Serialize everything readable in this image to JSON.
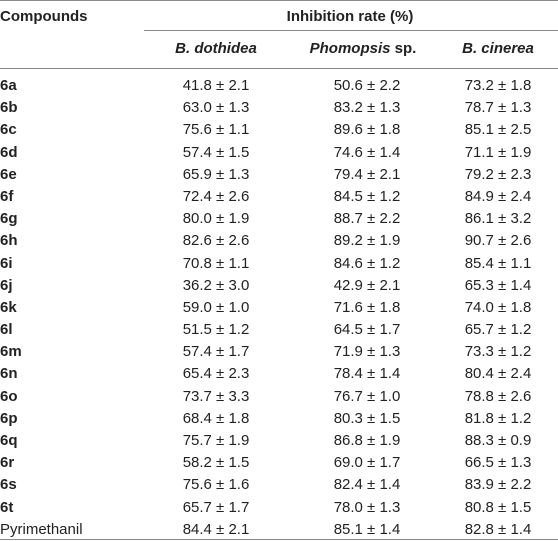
{
  "header": {
    "compounds": "Compounds",
    "inhibition": "Inhibition rate (%)",
    "species": [
      {
        "italic": "B. dothidea",
        "rest": ""
      },
      {
        "italic": "Phomopsis",
        "rest": " sp."
      },
      {
        "italic": "B. cinerea",
        "rest": ""
      }
    ]
  },
  "rows": [
    {
      "name": "6a",
      "v": [
        "41.8 ± 2.1",
        "50.6 ± 2.2",
        "73.2 ± 1.8"
      ]
    },
    {
      "name": "6b",
      "v": [
        "63.0 ± 1.3",
        "83.2 ± 1.3",
        "78.7 ± 1.3"
      ]
    },
    {
      "name": "6c",
      "v": [
        "75.6 ± 1.1",
        "89.6 ± 1.8",
        "85.1 ± 2.5"
      ]
    },
    {
      "name": "6d",
      "v": [
        "57.4 ± 1.5",
        "74.6 ± 1.4",
        "71.1 ± 1.9"
      ]
    },
    {
      "name": "6e",
      "v": [
        "65.9 ± 1.3",
        "79.4 ± 2.1",
        "79.2 ± 2.3"
      ]
    },
    {
      "name": "6f",
      "v": [
        "72.4 ± 2.6",
        "84.5 ± 1.2",
        "84.9 ± 2.4"
      ]
    },
    {
      "name": "6g",
      "v": [
        "80.0 ± 1.9",
        "88.7 ± 2.2",
        "86.1 ± 3.2"
      ]
    },
    {
      "name": "6h",
      "v": [
        "82.6 ± 2.6",
        "89.2 ± 1.9",
        "90.7 ± 2.6"
      ]
    },
    {
      "name": "6i",
      "v": [
        "70.8 ± 1.1",
        "84.6 ± 1.2",
        "85.4 ± 1.1"
      ]
    },
    {
      "name": "6j",
      "v": [
        "36.2 ± 3.0",
        "42.9 ± 2.1",
        "65.3 ± 1.4"
      ]
    },
    {
      "name": "6k",
      "v": [
        "59.0 ± 1.0",
        "71.6 ± 1.8",
        "74.0 ± 1.8"
      ]
    },
    {
      "name": "6l",
      "v": [
        "51.5 ± 1.2",
        "64.5 ± 1.7",
        "65.7 ± 1.2"
      ]
    },
    {
      "name": "6m",
      "v": [
        "57.4 ± 1.7",
        "71.9 ± 1.3",
        "73.3 ± 1.2"
      ]
    },
    {
      "name": "6n",
      "v": [
        "65.4 ± 2.3",
        "78.4 ± 1.4",
        "80.4 ± 2.4"
      ]
    },
    {
      "name": "6o",
      "v": [
        "73.7 ± 3.3",
        "76.7 ± 1.0",
        "78.8 ± 2.6"
      ]
    },
    {
      "name": "6p",
      "v": [
        "68.4 ± 1.8",
        "80.3 ± 1.5",
        "81.8 ± 1.2"
      ]
    },
    {
      "name": "6q",
      "v": [
        "75.7 ± 1.9",
        "86.8 ± 1.9",
        "88.3 ± 0.9"
      ]
    },
    {
      "name": "6r",
      "v": [
        "58.2 ± 1.5",
        "69.0 ± 1.7",
        "66.5 ± 1.3"
      ]
    },
    {
      "name": "6s",
      "v": [
        "75.6 ± 1.6",
        "82.4 ± 1.4",
        "83.9 ± 2.2"
      ]
    },
    {
      "name": "6t",
      "v": [
        "65.7 ± 1.7",
        "78.0 ± 1.3",
        "80.8 ± 1.5"
      ]
    },
    {
      "name": "Pyrimethanil",
      "v": [
        "84.4 ± 2.1",
        "85.1 ± 1.4",
        "82.8 ± 1.4"
      ],
      "plain": true
    }
  ]
}
